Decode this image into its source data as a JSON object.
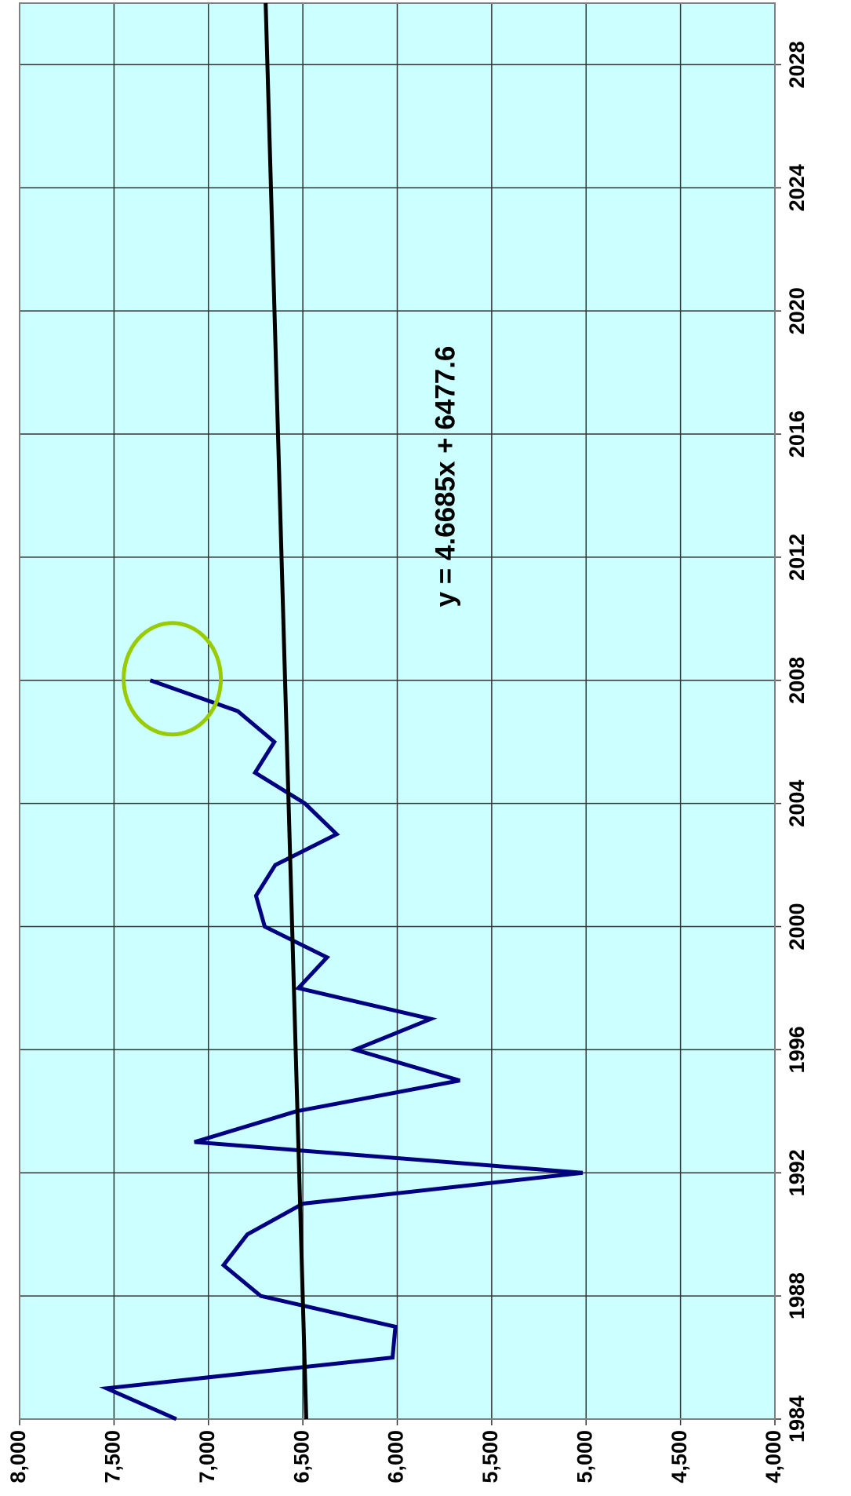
{
  "chart_data": {
    "type": "line",
    "annotation": "y = 4.6685x + 6477.6",
    "x": [
      1984,
      1985,
      1986,
      1987,
      1988,
      1989,
      1990,
      1991,
      1992,
      1993,
      1994,
      1995,
      1996,
      1997,
      1998,
      1999,
      2000,
      2001,
      2002,
      2003,
      2004,
      2005,
      2006,
      2007,
      2008
    ],
    "values": [
      7170,
      7540,
      6025,
      6010,
      6723,
      6920,
      6794,
      6499,
      5018,
      7074,
      6534,
      5669,
      6224,
      5822,
      6524,
      6372,
      6702,
      6748,
      6646,
      6321,
      6489,
      6753,
      6651,
      6845,
      7308
    ],
    "color": "#000080",
    "trendline": {
      "x": [
        1984,
        2030
      ],
      "values": [
        6482,
        6697
      ],
      "color": "#000000"
    },
    "highlight_color": "#99cc00",
    "background": "#ccffff",
    "xlim": [
      1984,
      2030
    ],
    "xticks": [
      1984,
      1988,
      1992,
      1996,
      2000,
      2004,
      2008,
      2012,
      2016,
      2020,
      2024,
      2028
    ],
    "ylim": [
      4000,
      8000
    ],
    "yticks": [
      {
        "value": 4000,
        "label": "4,000"
      },
      {
        "value": 4500,
        "label": "4,500"
      },
      {
        "value": 5000,
        "label": "5,000"
      },
      {
        "value": 5500,
        "label": "5,500"
      },
      {
        "value": 6000,
        "label": "6,000"
      },
      {
        "value": 6500,
        "label": "6,500"
      },
      {
        "value": 7000,
        "label": "7,000"
      },
      {
        "value": 7500,
        "label": "7,500"
      },
      {
        "value": 8000,
        "label": "8,000"
      }
    ],
    "grid": true
  }
}
